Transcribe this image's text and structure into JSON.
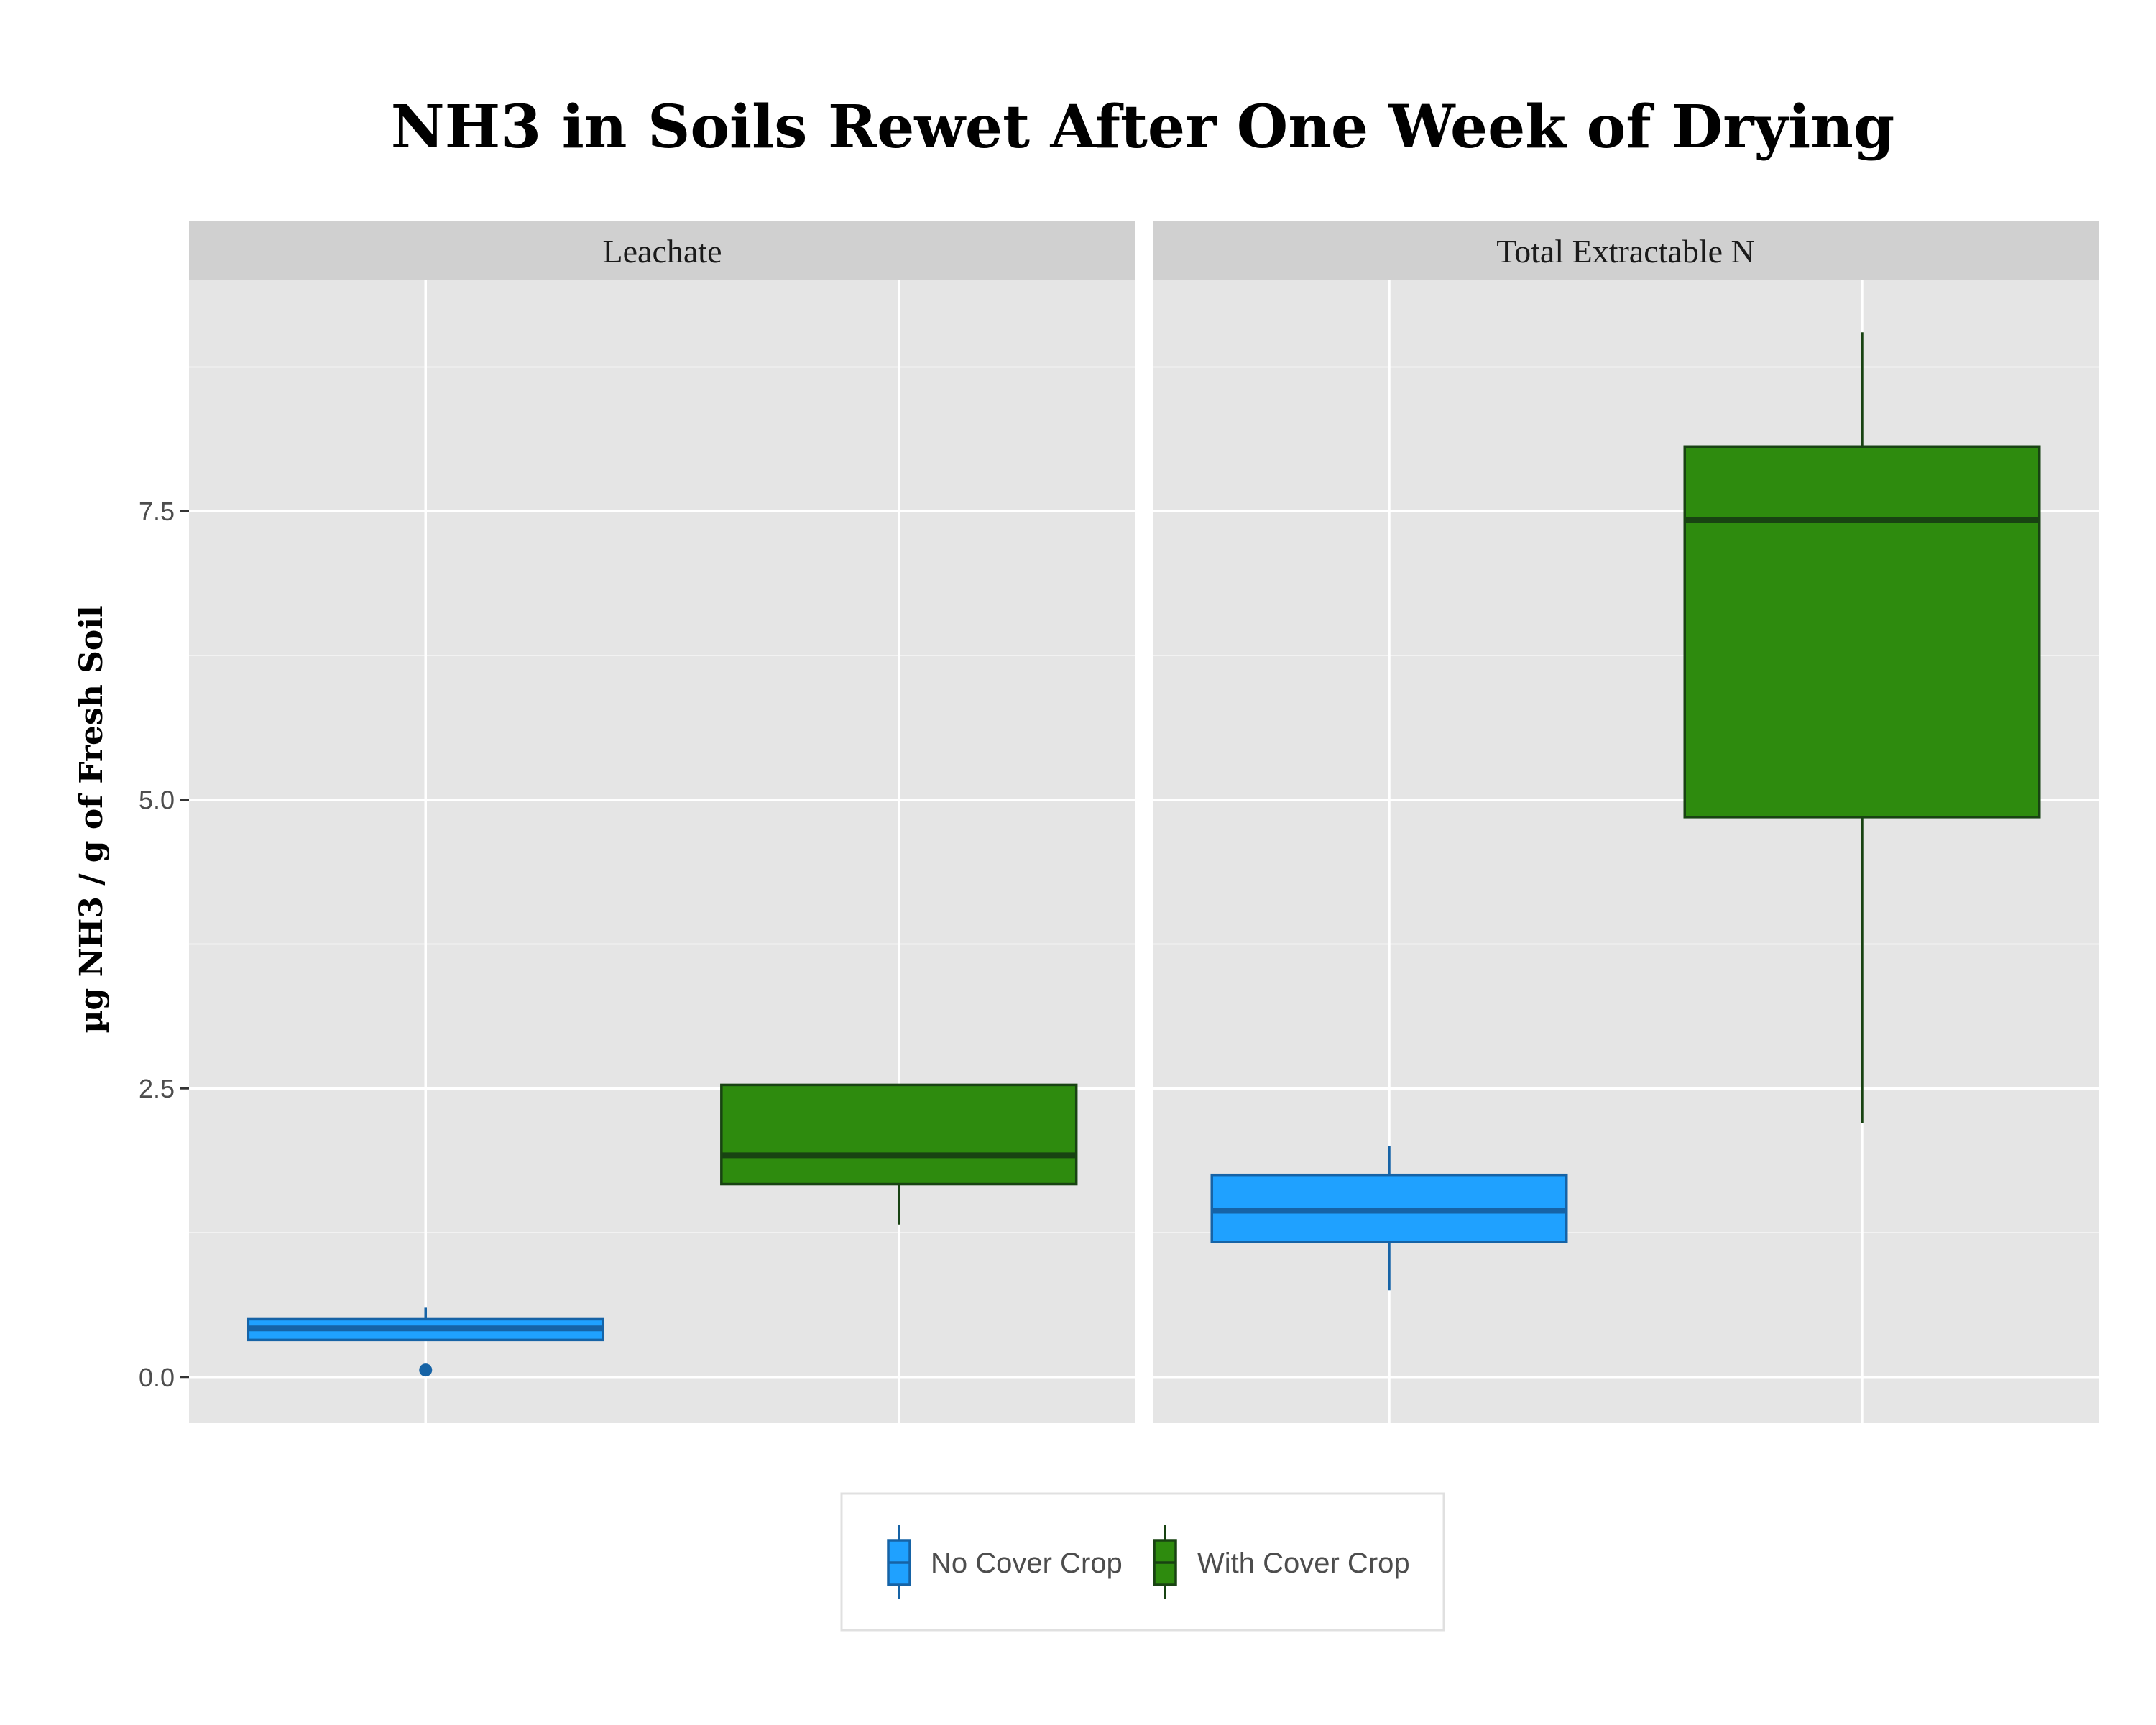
{
  "chart_data": {
    "type": "boxplot",
    "title": "NH3 in Soils Rewet After One Week of Drying",
    "ylabel": "µg NH3 / g of Fresh Soil",
    "xlabel": "",
    "ylim": [
      -0.4,
      9.5
    ],
    "yticks": [
      0.0,
      2.5,
      5.0,
      7.5
    ],
    "ytick_labels": [
      "0.0",
      "2.5",
      "5.0",
      "7.5"
    ],
    "grid": true,
    "legend_position": "bottom",
    "series": [
      {
        "name": "No Cover Crop",
        "color": "#1fa1ff",
        "line_color": "#1663a6"
      },
      {
        "name": "With Cover Crop",
        "color": "#2e8b0e",
        "line_color": "#184312"
      }
    ],
    "panels": [
      {
        "label": "Leachate",
        "boxes": [
          {
            "series": 0,
            "whisker_low": 0.32,
            "q1": 0.32,
            "median": 0.42,
            "q3": 0.5,
            "whisker_high": 0.6,
            "outliers": [
              0.06
            ]
          },
          {
            "series": 1,
            "whisker_low": 1.32,
            "q1": 1.67,
            "median": 1.92,
            "q3": 2.53,
            "whisker_high": 2.53,
            "outliers": []
          }
        ]
      },
      {
        "label": "Total Extractable N",
        "boxes": [
          {
            "series": 0,
            "whisker_low": 0.75,
            "q1": 1.17,
            "median": 1.44,
            "q3": 1.75,
            "whisker_high": 2.0,
            "outliers": []
          },
          {
            "series": 1,
            "whisker_low": 2.2,
            "q1": 4.85,
            "median": 7.42,
            "q3": 8.06,
            "whisker_high": 9.05,
            "outliers": []
          }
        ]
      }
    ]
  }
}
